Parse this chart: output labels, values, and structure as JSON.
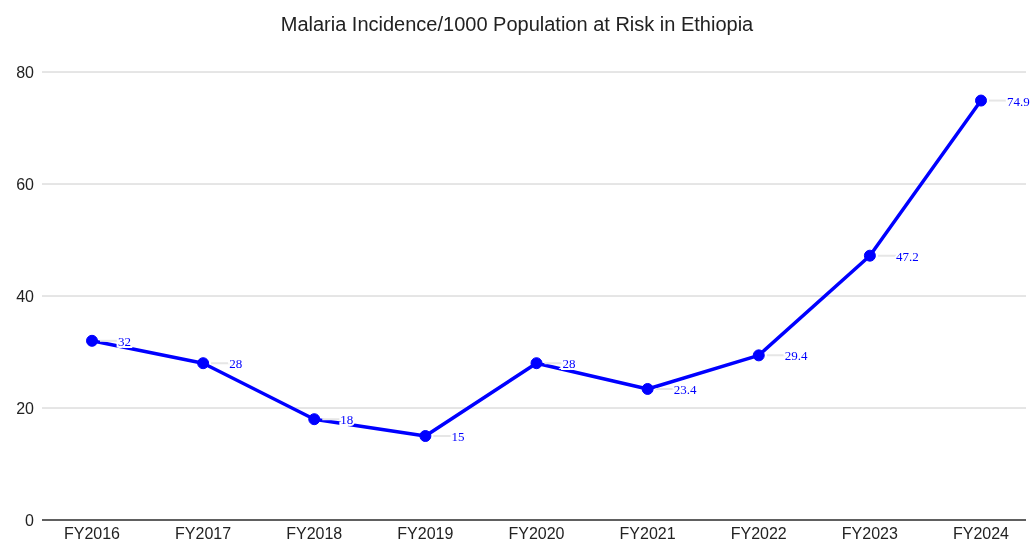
{
  "chart_data": {
    "type": "line",
    "title": "Malaria Incidence/1000 Population at Risk in Ethiopia",
    "categories": [
      "FY2016",
      "FY2017",
      "FY2018",
      "FY2019",
      "FY2020",
      "FY2021",
      "FY2022",
      "FY2023",
      "FY2024"
    ],
    "series": [
      {
        "color": "#0000ff",
        "values": [
          32,
          28,
          18,
          15,
          28,
          23.4,
          29.4,
          47.2,
          74.9
        ]
      }
    ],
    "ylim": [
      0,
      80
    ],
    "yticks": [
      0,
      20,
      40,
      60,
      80
    ],
    "grid": "y",
    "marker": "circle",
    "line_style": "solid",
    "data_labels": true
  }
}
